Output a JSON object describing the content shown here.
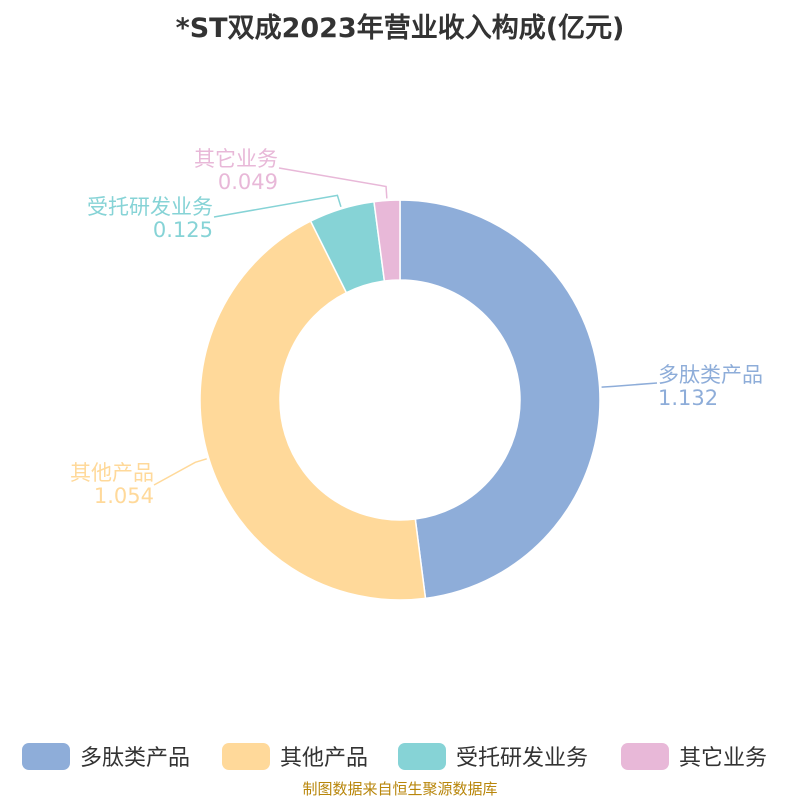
{
  "chart_data": {
    "type": "pie",
    "title": "*ST双成2023年营业收入构成(亿元)",
    "series": [
      {
        "name": "多肽类产品",
        "value": 1.132,
        "value_label": "1.132",
        "color": "#8eadd9"
      },
      {
        "name": "其他产品",
        "value": 1.054,
        "value_label": "1.054",
        "color": "#ffd99a"
      },
      {
        "name": "受托研发业务",
        "value": 0.125,
        "value_label": "0.125",
        "color": "#86d3d6"
      },
      {
        "name": "其它业务",
        "value": 0.049,
        "value_label": "0.049",
        "color": "#e8b8d8"
      }
    ],
    "legend_position": "bottom",
    "source": "制图数据来自恒生聚源数据库"
  }
}
